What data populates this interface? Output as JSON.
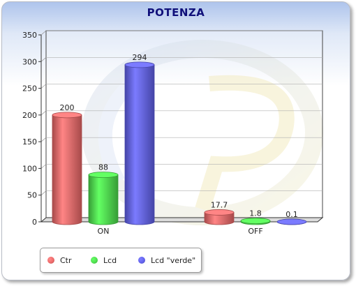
{
  "chart_data": {
    "type": "bar",
    "title": "POTENZA",
    "categories": [
      "ON",
      "OFF"
    ],
    "series": [
      {
        "name": "Ctr",
        "values": [
          200,
          17.7
        ],
        "labels": [
          "200",
          "17.7"
        ],
        "color": "#ee6a6a"
      },
      {
        "name": "Lcd",
        "values": [
          88,
          1.8
        ],
        "labels": [
          "88",
          "1.8"
        ],
        "color": "#4fe04f"
      },
      {
        "name": "Lcd \"verde\"",
        "values": [
          294,
          0.1
        ],
        "labels": [
          "294",
          "0.1"
        ],
        "color": "#6262ee"
      }
    ],
    "ylim": [
      0,
      350
    ],
    "yticks": [
      "0",
      "50",
      "100",
      "150",
      "200",
      "250",
      "300",
      "350"
    ],
    "grid": true,
    "legend": "bottom-left"
  }
}
